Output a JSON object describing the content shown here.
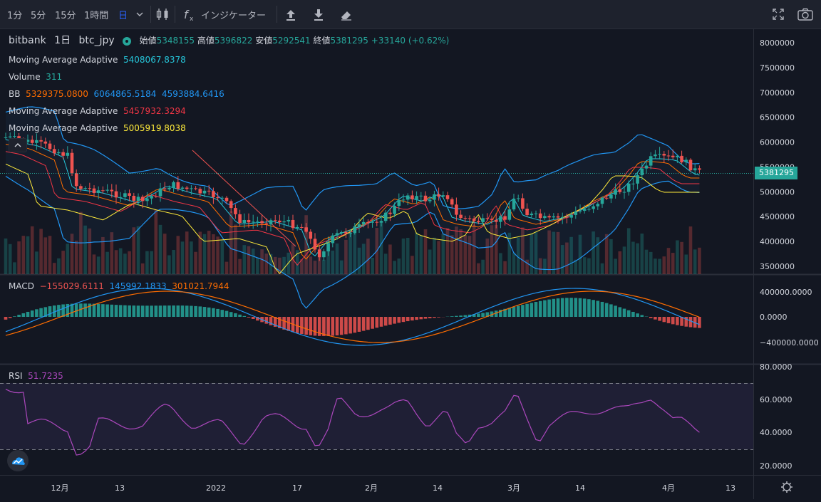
{
  "toolbar": {
    "intervals": [
      "1分",
      "5分",
      "15分",
      "1時間",
      "日"
    ],
    "active_interval": "日",
    "indicators_label": "インジケーター"
  },
  "symbol": {
    "exchange": "bitbank",
    "timeframe": "1日",
    "pair": "btc_jpy",
    "open_label": "始値",
    "open": "5348155",
    "high_label": "高値",
    "high": "5396822",
    "low_label": "安値",
    "low": "5292541",
    "close_label": "終値",
    "close": "5381295",
    "change": "+33140 (+0.62%)"
  },
  "indicators": {
    "maa1": {
      "name": "Moving Average Adaptive",
      "value": "5408067.8378",
      "color": "#26c6da"
    },
    "volume": {
      "name": "Volume",
      "value": "311"
    },
    "bb": {
      "name": "BB",
      "basis": "5329375.0800",
      "upper": "6064865.5184",
      "lower": "4593884.6416",
      "basis_color": "#ff6d00",
      "band_color": "#2196f3"
    },
    "maa2": {
      "name": "Moving Average Adaptive",
      "value": "5457932.3294",
      "color": "#f23645"
    },
    "maa3": {
      "name": "Moving Average Adaptive",
      "value": "5005919.8038",
      "color": "#ffeb3b"
    }
  },
  "price_axis": {
    "ticks": [
      "8000000",
      "7500000",
      "7000000",
      "6500000",
      "6000000",
      "5500000",
      "5000000",
      "4500000",
      "4000000",
      "3500000"
    ],
    "last_price": "5381295"
  },
  "macd": {
    "name": "MACD",
    "hist": "−155029.6111",
    "macd": "145992.1833",
    "signal": "301021.7944",
    "ticks": [
      "400000.0000",
      "0.0000",
      "−400000.0000"
    ]
  },
  "rsi": {
    "name": "RSI",
    "value": "51.7235",
    "ticks": [
      "80.0000",
      "60.0000",
      "40.0000",
      "20.0000"
    ]
  },
  "time_axis": {
    "labels": [
      "12月",
      "13",
      "2022",
      "17",
      "2月",
      "14",
      "3月",
      "14",
      "4月",
      "13"
    ]
  },
  "colors": {
    "up": "#26a69a",
    "down": "#ef5350",
    "background": "#131722",
    "rsi_line": "#ab47bc"
  }
}
